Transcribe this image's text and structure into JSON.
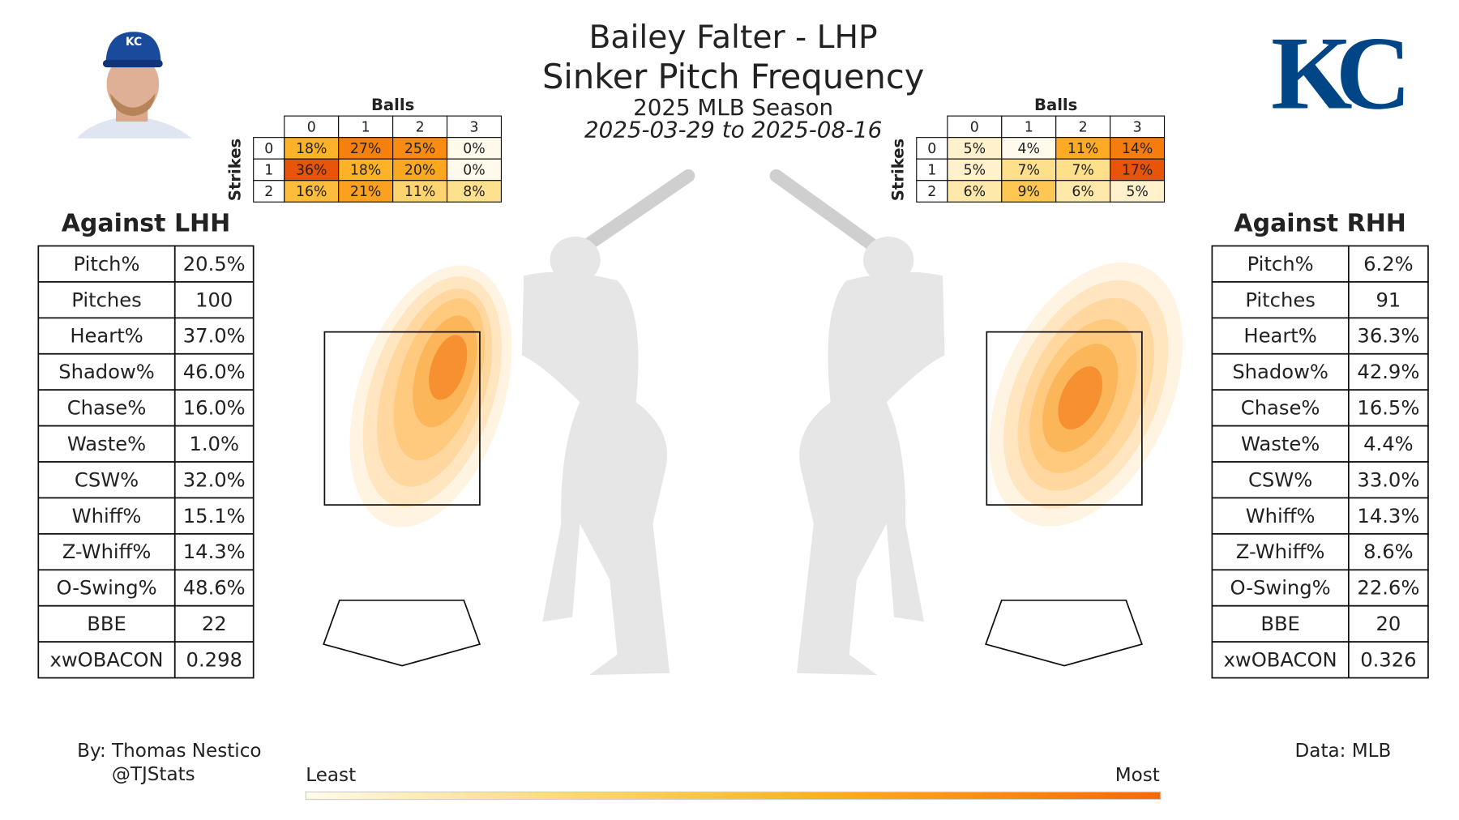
{
  "header": {
    "title": "Bailey Falter - LHP",
    "subtitle": "Sinker Pitch Frequency",
    "season": "2025 MLB Season",
    "dates": "2025-03-29 to 2025-08-16",
    "team": "KC"
  },
  "count_tables": [
    {
      "balls_label": "Balls",
      "strikes_label": "Strikes",
      "balls": [
        0,
        1,
        2,
        3
      ],
      "strikes": [
        0,
        1,
        2
      ],
      "values": [
        [
          18,
          27,
          25,
          0
        ],
        [
          36,
          18,
          20,
          0
        ],
        [
          16,
          21,
          11,
          8
        ]
      ],
      "value_labels": [
        [
          "18%",
          "27%",
          "25%",
          "0%"
        ],
        [
          "36%",
          "18%",
          "20%",
          "0%"
        ],
        [
          "16%",
          "21%",
          "11%",
          "8%"
        ]
      ]
    },
    {
      "balls_label": "Balls",
      "strikes_label": "Strikes",
      "balls": [
        0,
        1,
        2,
        3
      ],
      "strikes": [
        0,
        1,
        2
      ],
      "values": [
        [
          5,
          4,
          11,
          14
        ],
        [
          5,
          7,
          7,
          17
        ],
        [
          6,
          9,
          6,
          5
        ]
      ],
      "value_labels": [
        [
          "5%",
          "4%",
          "11%",
          "14%"
        ],
        [
          "5%",
          "7%",
          "7%",
          "17%"
        ],
        [
          "6%",
          "9%",
          "6%",
          "5%"
        ]
      ]
    }
  ],
  "stat_tables": [
    {
      "title": "Against LHH",
      "rows": [
        [
          "Pitch%",
          "20.5%"
        ],
        [
          "Pitches",
          "100"
        ],
        [
          "Heart%",
          "37.0%"
        ],
        [
          "Shadow%",
          "46.0%"
        ],
        [
          "Chase%",
          "16.0%"
        ],
        [
          "Waste%",
          "1.0%"
        ],
        [
          "CSW%",
          "32.0%"
        ],
        [
          "Whiff%",
          "15.1%"
        ],
        [
          "Z-Whiff%",
          "14.3%"
        ],
        [
          "O-Swing%",
          "48.6%"
        ],
        [
          "BBE",
          "22"
        ],
        [
          "xwOBACON",
          "0.298"
        ]
      ]
    },
    {
      "title": "Against RHH",
      "rows": [
        [
          "Pitch%",
          "6.2%"
        ],
        [
          "Pitches",
          "91"
        ],
        [
          "Heart%",
          "36.3%"
        ],
        [
          "Shadow%",
          "42.9%"
        ],
        [
          "Chase%",
          "16.5%"
        ],
        [
          "Waste%",
          "4.4%"
        ],
        [
          "CSW%",
          "33.0%"
        ],
        [
          "Whiff%",
          "14.3%"
        ],
        [
          "Z-Whiff%",
          "8.6%"
        ],
        [
          "O-Swing%",
          "22.6%"
        ],
        [
          "BBE",
          "20"
        ],
        [
          "xwOBACON",
          "0.326"
        ]
      ]
    }
  ],
  "footer": {
    "author": "By: Thomas Nestico",
    "handle": "@TJStats",
    "source": "Data: MLB",
    "least": "Least",
    "most": "Most"
  }
}
